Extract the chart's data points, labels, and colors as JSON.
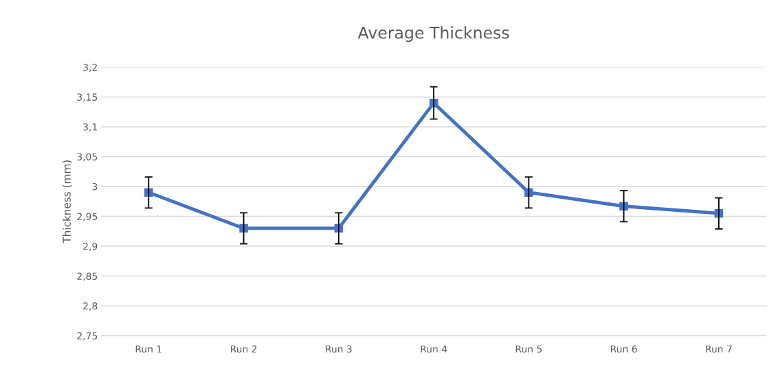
{
  "chart_data": {
    "type": "line",
    "title": "Average Thickness",
    "ylabel": "Thickness (mm)",
    "categories": [
      "Run 1",
      "Run 2",
      "Run 3",
      "Run 4",
      "Run 5",
      "Run 6",
      "Run 7"
    ],
    "series": [
      {
        "color": "#4472c4",
        "values": [
          2.99,
          2.93,
          2.93,
          3.14,
          2.99,
          2.967,
          2.955
        ],
        "errors": [
          0.026,
          0.026,
          0.026,
          0.027,
          0.026,
          0.026,
          0.026
        ]
      }
    ],
    "ylim": [
      2.75,
      3.2
    ],
    "yticks": [
      {
        "value": 2.75,
        "label": "2,75"
      },
      {
        "value": 2.8,
        "label": "2,8"
      },
      {
        "value": 2.85,
        "label": "2,85"
      },
      {
        "value": 2.9,
        "label": "2,9"
      },
      {
        "value": 2.95,
        "label": "2,95"
      },
      {
        "value": 3,
        "label": "3"
      },
      {
        "value": 3.05,
        "label": "3,05"
      },
      {
        "value": 3.1,
        "label": "3,1"
      },
      {
        "value": 3.15,
        "label": "3,15"
      },
      {
        "value": 3.2,
        "label": "3,2"
      }
    ],
    "grid": "y",
    "marker": "square",
    "line_style": "solid"
  }
}
